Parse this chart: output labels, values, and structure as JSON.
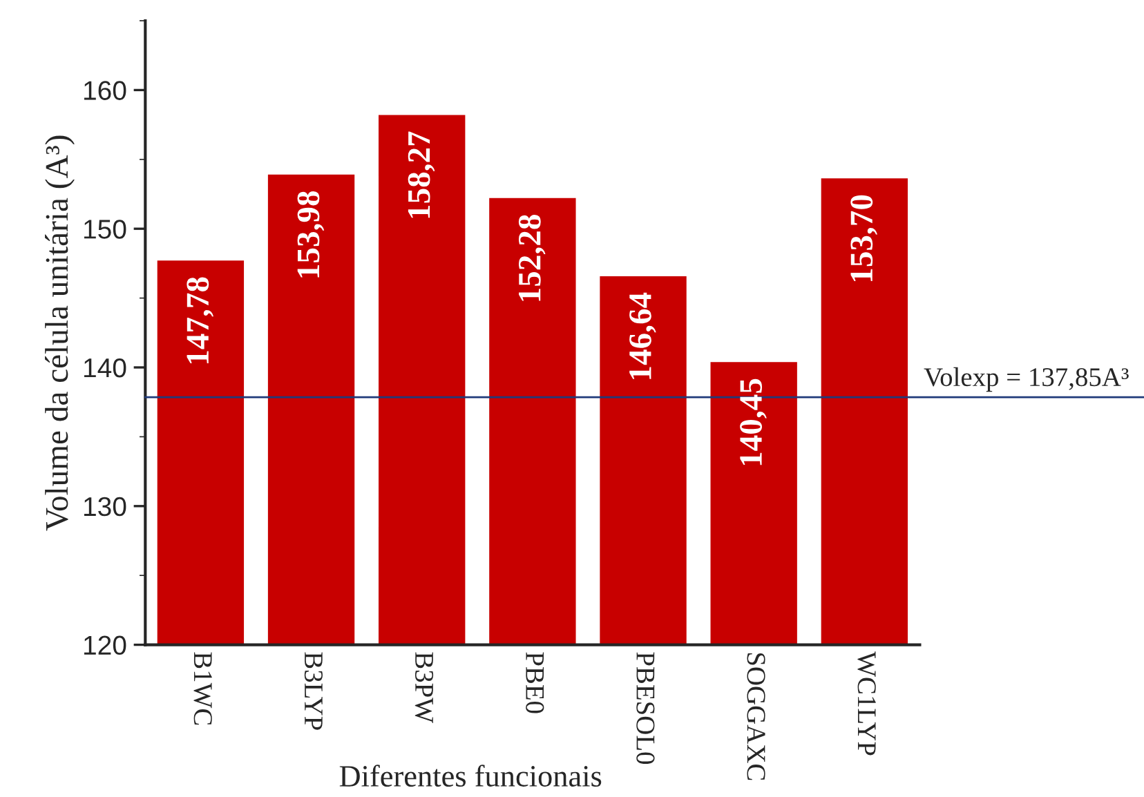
{
  "chart_data": {
    "type": "bar",
    "xlabel": "Diferentes funcionais",
    "ylabel": "Volume da célula unitária (A³)",
    "categories": [
      "B1WC",
      "B3LYP",
      "B3PW",
      "PBE0",
      "PBESOL0",
      "SOGGAXC",
      "WC1LYP"
    ],
    "values": [
      147.78,
      153.98,
      158.27,
      152.28,
      146.64,
      140.45,
      153.7
    ],
    "value_labels": [
      "147,78",
      "153,98",
      "158,27",
      "152,28",
      "146,64",
      "140,45",
      "153,70"
    ],
    "color": "#c80000",
    "ylim": [
      120,
      165
    ],
    "yticks": [
      120,
      130,
      140,
      150,
      160
    ],
    "ref_lines": [
      {
        "axis": "y",
        "value": 137.85,
        "label": "Volexp = 137,85A³",
        "color": "#1f3a7a"
      }
    ],
    "grid": false,
    "legend": false
  }
}
